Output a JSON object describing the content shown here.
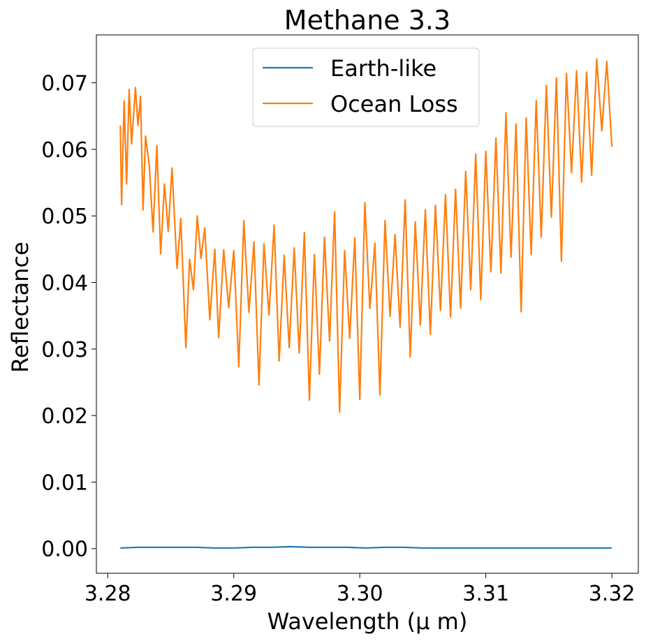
{
  "chart_data": {
    "type": "line",
    "title": "Methane 3.3",
    "xlabel": "Wavelength (μ m)",
    "ylabel": "Reflectance",
    "xlim": [
      3.2791,
      3.3221
    ],
    "ylim": [
      -0.0037,
      0.0772
    ],
    "xticks": [
      3.28,
      3.29,
      3.3,
      3.31,
      3.32
    ],
    "xtick_labels": [
      "3.28",
      "3.29",
      "3.30",
      "3.31",
      "3.32"
    ],
    "yticks": [
      0.0,
      0.01,
      0.02,
      0.03,
      0.04,
      0.05,
      0.06,
      0.07
    ],
    "ytick_labels": [
      "0.00",
      "0.01",
      "0.02",
      "0.03",
      "0.04",
      "0.05",
      "0.06",
      "0.07"
    ],
    "grid": false,
    "legend_position": "top-center",
    "series": [
      {
        "name": "Earth-like",
        "color": "#1f77b4",
        "x": [
          3.281,
          3.2825,
          3.284,
          3.2855,
          3.287,
          3.2885,
          3.29,
          3.2915,
          3.293,
          3.2945,
          3.296,
          3.2975,
          3.299,
          3.3005,
          3.302,
          3.3035,
          3.305,
          3.3065,
          3.308,
          3.3095,
          3.311,
          3.3125,
          3.314,
          3.3155,
          3.317,
          3.3185,
          3.32
        ],
        "y": [
          0.0001,
          0.0002,
          0.0002,
          0.0002,
          0.0002,
          0.0001,
          0.0001,
          0.0002,
          0.0002,
          0.0003,
          0.0002,
          0.0002,
          0.0002,
          0.0001,
          0.0002,
          0.0002,
          0.0001,
          0.0001,
          0.0001,
          0.0001,
          0.0001,
          0.0001,
          0.0001,
          0.0001,
          0.0001,
          0.0001,
          0.0001
        ]
      },
      {
        "name": "Ocean Loss",
        "color": "#ff7f0e",
        "x": [
          3.281,
          3.2811,
          3.2813,
          3.2815,
          3.2817,
          3.2819,
          3.2822,
          3.2824,
          3.2826,
          3.2828,
          3.283,
          3.2833,
          3.2836,
          3.2839,
          3.2842,
          3.2845,
          3.2848,
          3.2851,
          3.2855,
          3.2858,
          3.2862,
          3.2865,
          3.2868,
          3.2871,
          3.2874,
          3.2877,
          3.2881,
          3.2885,
          3.2888,
          3.2892,
          3.2896,
          3.29,
          3.2904,
          3.2908,
          3.2912,
          3.2916,
          3.292,
          3.2924,
          3.2928,
          3.2932,
          3.2936,
          3.294,
          3.2944,
          3.2948,
          3.2952,
          3.2956,
          3.296,
          3.2964,
          3.2968,
          3.2972,
          3.2976,
          3.298,
          3.2984,
          3.2988,
          3.2992,
          3.2996,
          3.3,
          3.3004,
          3.3008,
          3.3012,
          3.3016,
          3.302,
          3.3024,
          3.3028,
          3.3032,
          3.3036,
          3.304,
          3.3044,
          3.3048,
          3.3052,
          3.3056,
          3.306,
          3.3064,
          3.3068,
          3.3072,
          3.3076,
          3.308,
          3.3084,
          3.3088,
          3.3092,
          3.3096,
          3.31,
          3.3104,
          3.3108,
          3.3112,
          3.3116,
          3.312,
          3.3124,
          3.3128,
          3.3132,
          3.3136,
          3.314,
          3.3144,
          3.3148,
          3.3152,
          3.3156,
          3.316,
          3.3164,
          3.3168,
          3.3172,
          3.3176,
          3.318,
          3.3184,
          3.3188,
          3.3192,
          3.3196,
          3.32
        ],
        "y": [
          0.0636,
          0.0517,
          0.0673,
          0.0548,
          0.069,
          0.0608,
          0.0693,
          0.0636,
          0.068,
          0.0509,
          0.062,
          0.0576,
          0.0476,
          0.0606,
          0.0443,
          0.0548,
          0.0477,
          0.0572,
          0.0421,
          0.0496,
          0.0302,
          0.0435,
          0.0389,
          0.05,
          0.0436,
          0.0482,
          0.0344,
          0.045,
          0.0317,
          0.0449,
          0.0362,
          0.0448,
          0.0273,
          0.0493,
          0.0355,
          0.0461,
          0.0246,
          0.0458,
          0.0351,
          0.0486,
          0.0282,
          0.0441,
          0.0302,
          0.0452,
          0.0294,
          0.0475,
          0.0223,
          0.0442,
          0.0262,
          0.0468,
          0.0312,
          0.0506,
          0.0205,
          0.0448,
          0.0316,
          0.0467,
          0.0224,
          0.052,
          0.0361,
          0.0459,
          0.0231,
          0.0493,
          0.0349,
          0.0472,
          0.0333,
          0.0524,
          0.0288,
          0.0491,
          0.0336,
          0.0509,
          0.0322,
          0.0516,
          0.0358,
          0.0532,
          0.0348,
          0.054,
          0.0361,
          0.0567,
          0.0389,
          0.0593,
          0.0374,
          0.0597,
          0.0416,
          0.0617,
          0.0414,
          0.0655,
          0.0438,
          0.0638,
          0.0356,
          0.0647,
          0.0442,
          0.0673,
          0.0468,
          0.0696,
          0.0498,
          0.0707,
          0.0432,
          0.0714,
          0.0565,
          0.0718,
          0.0551,
          0.0716,
          0.0561,
          0.0736,
          0.0628,
          0.0732,
          0.0604
        ]
      }
    ]
  }
}
